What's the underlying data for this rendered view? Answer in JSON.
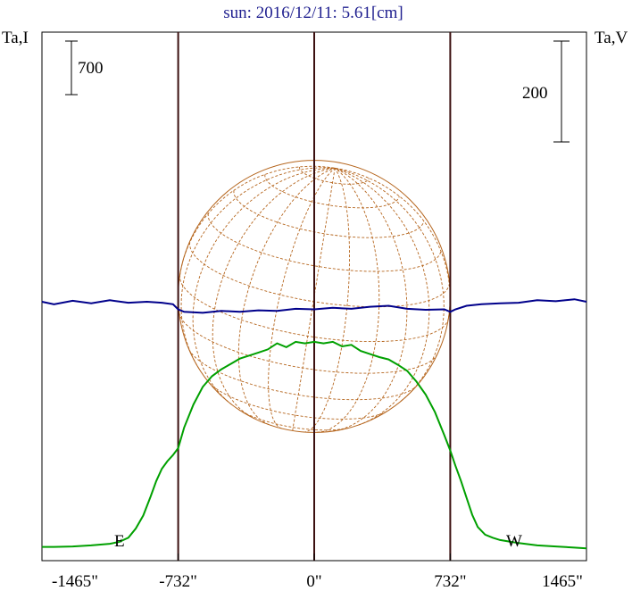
{
  "chart_data": {
    "type": "line",
    "title": "sun: 2016/12/11: 5.61[cm]",
    "left_axis_label": "Ta,I",
    "right_axis_label": "Ta,V",
    "scale_bar_left": "700",
    "scale_bar_right": "200",
    "xlim": [
      -1465,
      1465
    ],
    "xticks": [
      -1465,
      -732,
      0,
      732,
      1465
    ],
    "xtick_labels": [
      "-1465\"",
      "-732\"",
      "0\"",
      "732\"",
      "1465\""
    ],
    "limb_labels": {
      "east": "E",
      "west": "W"
    },
    "limb_positions": [
      -732,
      0,
      732
    ],
    "solar_radius_arcsec": 732,
    "series": [
      {
        "name": "I",
        "color": "#00a000",
        "x": [
          -1465,
          -1400,
          -1300,
          -1200,
          -1100,
          -1050,
          -1000,
          -960,
          -920,
          -880,
          -850,
          -820,
          -790,
          -760,
          -732,
          -700,
          -650,
          -600,
          -550,
          -500,
          -450,
          -400,
          -350,
          -300,
          -250,
          -200,
          -150,
          -100,
          -50,
          0,
          50,
          100,
          150,
          200,
          250,
          300,
          350,
          400,
          450,
          500,
          550,
          600,
          650,
          700,
          732,
          760,
          790,
          820,
          850,
          880,
          920,
          960,
          1000,
          1050,
          1100,
          1200,
          1300,
          1400,
          1465
        ],
        "values": [
          40,
          40,
          45,
          60,
          80,
          105,
          160,
          280,
          450,
          700,
          900,
          1060,
          1160,
          1240,
          1330,
          1600,
          1900,
          2130,
          2270,
          2360,
          2430,
          2500,
          2540,
          2580,
          2620,
          2700,
          2650,
          2720,
          2700,
          2720,
          2700,
          2720,
          2660,
          2680,
          2600,
          2560,
          2520,
          2490,
          2420,
          2340,
          2200,
          2030,
          1800,
          1500,
          1300,
          1100,
          900,
          680,
          460,
          300,
          200,
          160,
          130,
          110,
          90,
          60,
          45,
          30,
          20
        ]
      },
      {
        "name": "V",
        "color": "#00008b",
        "x": [
          -1465,
          -1400,
          -1300,
          -1200,
          -1100,
          -1000,
          -900,
          -820,
          -760,
          -732,
          -700,
          -600,
          -500,
          -400,
          -300,
          -200,
          -100,
          0,
          100,
          200,
          300,
          400,
          500,
          600,
          700,
          732,
          760,
          820,
          900,
          1000,
          1100,
          1200,
          1300,
          1400,
          1465
        ],
        "values": [
          0,
          -5,
          2,
          -3,
          3,
          -2,
          0,
          -2,
          -5,
          -15,
          -20,
          -22,
          -18,
          -20,
          -17,
          -18,
          -14,
          -15,
          -12,
          -14,
          -10,
          -8,
          -14,
          -16,
          -15,
          -20,
          -15,
          -8,
          -5,
          -3,
          -2,
          3,
          1,
          5,
          0
        ]
      }
    ]
  }
}
